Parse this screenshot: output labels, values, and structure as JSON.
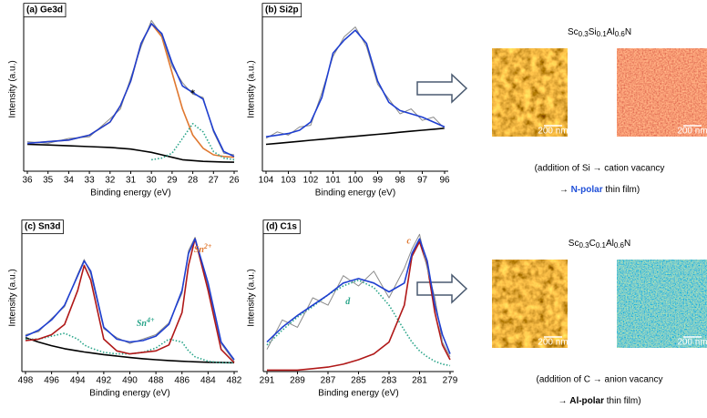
{
  "chart_data": [
    {
      "type": "line",
      "title": "(a) Ge3d",
      "x_label": "Binding energy (eV)",
      "y_label": "Intensity (a.u.)",
      "x": [
        36,
        35,
        34,
        33,
        32,
        31.5,
        31,
        30.5,
        30,
        29.5,
        29,
        28.5,
        28,
        27.5,
        27,
        26.5,
        26
      ],
      "xlim": [
        36,
        26
      ],
      "xticks": [
        36,
        35,
        34,
        33,
        32,
        31,
        30,
        29,
        28,
        27,
        26
      ],
      "ylim": [
        0,
        100
      ],
      "series": [
        {
          "color": "#000000",
          "values": [
            16.4,
            16,
            15.5,
            15,
            14.5,
            14,
            13.5,
            12.5,
            11.5,
            10,
            8.5,
            7,
            6.5,
            6,
            5.8,
            5.6,
            5.5
          ]
        },
        {
          "color": "#e07830",
          "values": [
            17,
            18,
            19,
            22,
            30,
            40,
            55,
            78,
            90,
            82,
            60,
            38,
            22,
            14,
            10,
            9,
            8.5
          ]
        },
        {
          "color": "#2aa58a",
          "style": "dotted",
          "values": [
            null,
            null,
            null,
            null,
            null,
            null,
            null,
            null,
            7,
            8,
            11,
            20,
            29,
            24,
            12,
            8,
            7
          ]
        },
        {
          "color": "#8a8a8a",
          "values": [
            18,
            17,
            20,
            21,
            32,
            38,
            57,
            76,
            92,
            83,
            64,
            54,
            47,
            45,
            24,
            11,
            10
          ]
        },
        {
          "color": "#1f3fd0",
          "values": [
            17,
            18,
            19,
            22,
            30,
            40,
            55,
            78,
            90,
            84,
            66,
            52,
            48,
            44,
            25,
            12,
            9
          ]
        }
      ],
      "annotations": [
        {
          "text": "*",
          "x": 28,
          "y": 47,
          "color": "#000000"
        }
      ]
    },
    {
      "type": "line",
      "title": "(b) Si2p",
      "x_label": "Binding energy (eV)",
      "y_label": "Intensity (a.u.)",
      "x": [
        104,
        103.5,
        103,
        102.5,
        102,
        101.5,
        101,
        100.5,
        100,
        99.5,
        99,
        98.5,
        98,
        97.5,
        97,
        96.5,
        96
      ],
      "xlim": [
        104,
        96
      ],
      "xticks": [
        104,
        103,
        102,
        101,
        100,
        99,
        98,
        97,
        96
      ],
      "ylim": [
        0,
        100
      ],
      "series": [
        {
          "color": "#000000",
          "values": [
            16.4,
            17,
            17.6,
            18.2,
            18.9,
            19.5,
            20.1,
            20.7,
            21.3,
            21.9,
            22.5,
            23.1,
            23.8,
            24.4,
            25,
            25.6,
            26.2
          ]
        },
        {
          "color": "#8a8a8a",
          "values": [
            20,
            24,
            22,
            27,
            28,
            48,
            70,
            82,
            88,
            76,
            53,
            44,
            35,
            38,
            31,
            33,
            26
          ]
        },
        {
          "color": "#1f3fd0",
          "values": [
            21,
            22,
            23,
            25,
            30,
            45,
            72,
            80,
            86,
            78,
            55,
            42,
            37,
            35,
            33,
            30,
            27
          ]
        }
      ]
    },
    {
      "type": "line",
      "title": "(c) Sn3d",
      "x_label": "Binding energy (eV)",
      "y_label": "Intensity (a.u.)",
      "x": [
        498,
        497,
        496,
        495,
        494,
        493.5,
        493,
        492,
        491,
        490,
        489,
        488,
        487,
        486,
        485.5,
        485,
        484,
        483,
        482
      ],
      "xlim": [
        498,
        482
      ],
      "xticks": [
        498,
        496,
        494,
        492,
        490,
        488,
        486,
        484,
        482
      ],
      "ylim": [
        0,
        100
      ],
      "series": [
        {
          "color": "#000000",
          "values": [
            23,
            20,
            17.5,
            15.5,
            14,
            13.3,
            12.7,
            11.5,
            10.5,
            9.5,
            8.7,
            8,
            7.5,
            7,
            6.8,
            6.6,
            6.3,
            6.1,
            6
          ]
        },
        {
          "color": "#2aa58a",
          "style": "dotted",
          "values": [
            22,
            22,
            24,
            26,
            22,
            18,
            16,
            13,
            12,
            12,
            13,
            16,
            22,
            20,
            14,
            10,
            7,
            6,
            6
          ]
        },
        {
          "color": "#8a8a8a",
          "values": [
            25,
            27,
            36,
            44,
            66,
            76,
            66,
            29,
            23,
            19,
            22,
            25,
            33,
            53,
            82,
            91,
            58,
            19,
            7
          ]
        },
        {
          "color": "#b01818",
          "values": [
            21,
            22,
            25,
            32,
            55,
            72,
            62,
            22,
            14,
            12,
            13,
            14,
            18,
            40,
            72,
            90,
            55,
            15,
            6
          ]
        },
        {
          "color": "#1f3fd0",
          "values": [
            24,
            28,
            35,
            45,
            65,
            75,
            68,
            30,
            22,
            20,
            21,
            24,
            32,
            55,
            80,
            90,
            60,
            20,
            8
          ]
        }
      ],
      "annotations": [
        {
          "text": "Sn",
          "sup": "2+",
          "x": 484.4,
          "y": 82,
          "color": "#e07830"
        },
        {
          "text": "Sn",
          "sup": "4+",
          "x": 488.8,
          "y": 32,
          "color": "#2aa58a"
        }
      ]
    },
    {
      "type": "line",
      "title": "(d) C1s",
      "x_label": "Binding energy (eV)",
      "y_label": "Intensity (a.u.)",
      "x": [
        291,
        290,
        289,
        288,
        287,
        286,
        285,
        284,
        283,
        282,
        281.5,
        281,
        280.5,
        280,
        279.5,
        279
      ],
      "xlim": [
        291,
        279
      ],
      "xticks": [
        291,
        289,
        287,
        285,
        283,
        281,
        279
      ],
      "ylim": [
        0,
        100
      ],
      "series": [
        {
          "color": "#2aa58a",
          "style": "dotted",
          "values": [
            18,
            28,
            37,
            44,
            52,
            58,
            62,
            57,
            45,
            28,
            20,
            14,
            10,
            7,
            5,
            4
          ]
        },
        {
          "color": "#b01818",
          "values": [
            1,
            1,
            1,
            2,
            3,
            5,
            8,
            12,
            20,
            45,
            78,
            88,
            72,
            40,
            18,
            8
          ]
        },
        {
          "color": "#8a8a8a",
          "values": [
            15,
            35,
            30,
            50,
            45,
            65,
            58,
            68,
            50,
            70,
            83,
            93,
            70,
            50,
            20,
            10
          ]
        },
        {
          "color": "#1f3fd0",
          "values": [
            20,
            30,
            38,
            45,
            52,
            60,
            63,
            60,
            54,
            60,
            80,
            90,
            75,
            45,
            25,
            12
          ]
        }
      ],
      "annotations": [
        {
          "text": "c",
          "x": 281.7,
          "y": 88,
          "color": "#e07830"
        },
        {
          "text": "d",
          "x": 285.7,
          "y": 47,
          "color": "#2aa58a"
        }
      ]
    }
  ],
  "panels": [
    {
      "formula": [
        [
          "Sc",
          "0.3"
        ],
        [
          "Si",
          "0.1"
        ],
        [
          "Al",
          "0.6"
        ],
        [
          "N",
          ""
        ]
      ],
      "images": [
        {
          "kind": "afm",
          "scale_bar": "200 nm"
        },
        {
          "kind": "pfm-red",
          "scale_bar": "200 nm"
        }
      ],
      "caption": {
        "line1": "(addition of Si → cation vacancy",
        "prefix": "→ ",
        "bold": "N-polar",
        "suffix": " thin film)",
        "bold_color": "#1f4fd8"
      }
    },
    {
      "formula": [
        [
          "Sc",
          "0.3"
        ],
        [
          "C",
          "0.1"
        ],
        [
          "Al",
          "0.6"
        ],
        [
          "N",
          ""
        ]
      ],
      "images": [
        {
          "kind": "afm",
          "scale_bar": "200 nm"
        },
        {
          "kind": "pfm-teal",
          "scale_bar": "200 nm"
        }
      ],
      "caption": {
        "line1": "(addition of C → anion vacancy",
        "prefix": "→ ",
        "bold": "Al-polar",
        "suffix": " thin film)",
        "bold_color": "#000000"
      }
    }
  ]
}
